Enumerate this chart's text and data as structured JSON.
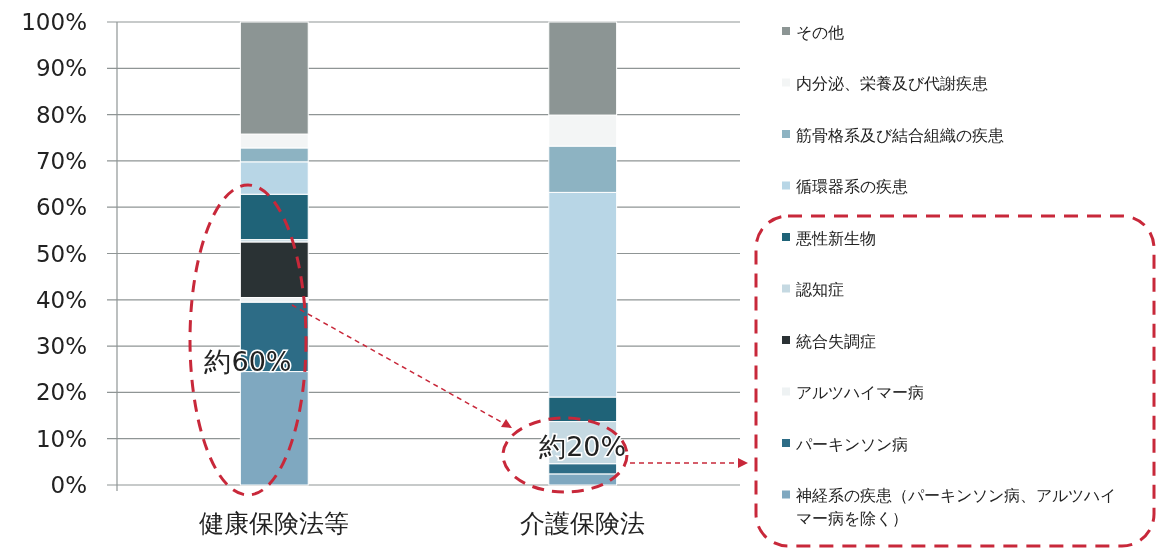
{
  "chart_data": {
    "type": "bar",
    "stacked": true,
    "categories": [
      "健康保険法等",
      "介護保険法"
    ],
    "series": [
      {
        "name": "神経系の疾患（パーキンソン病、アルツハイマー病を除く）",
        "color": "#7fa8c0",
        "values": [
          24.5,
          2.4
        ]
      },
      {
        "name": "パーキンソン病",
        "color": "#2d6c86",
        "values": [
          15,
          2.2
        ]
      },
      {
        "name": "アルツハイマー病",
        "color": "#eef2f3",
        "values": [
          1,
          null
        ]
      },
      {
        "name": "統合失調症",
        "color": "#2a3234",
        "values": [
          12,
          null
        ]
      },
      {
        "name": "認知症",
        "color": "#c5d9e2",
        "values": [
          0.5,
          9.1
        ]
      },
      {
        "name": "悪性新生物",
        "color": "#1f6378",
        "values": [
          9.8,
          5.3
        ]
      },
      {
        "name": "循環器系の疾患",
        "color": "#b8d6e6",
        "values": [
          7,
          44.2
        ]
      },
      {
        "name": "筋骨格系及び結合組織の疾患",
        "color": "#8db3c2",
        "values": [
          3,
          10
        ]
      },
      {
        "name": "内分泌、栄養及び代謝疾患",
        "color": "#f3f5f5",
        "values": [
          3,
          6.7
        ]
      },
      {
        "name": "その他",
        "color": "#8c9594",
        "values": [
          24.2,
          20.1
        ]
      }
    ],
    "ylim": [
      0,
      100
    ],
    "yticks": [
      {
        "value": 0,
        "label": "0%"
      },
      {
        "value": 10,
        "label": "10%"
      },
      {
        "value": 20,
        "label": "20%"
      },
      {
        "value": 30,
        "label": "30%"
      },
      {
        "value": 40,
        "label": "40%"
      },
      {
        "value": 50,
        "label": "50%"
      },
      {
        "value": 60,
        "label": "60%"
      },
      {
        "value": 70,
        "label": "70%"
      },
      {
        "value": 80,
        "label": "80%"
      },
      {
        "value": 90,
        "label": "90%"
      },
      {
        "value": 100,
        "label": "100%"
      }
    ],
    "grid": "y",
    "legend": "right",
    "annotations": [
      "約60%",
      {
        "text": "約20%",
        "x": "介護保険法",
        "y": 13.7
      }
    ]
  }
}
